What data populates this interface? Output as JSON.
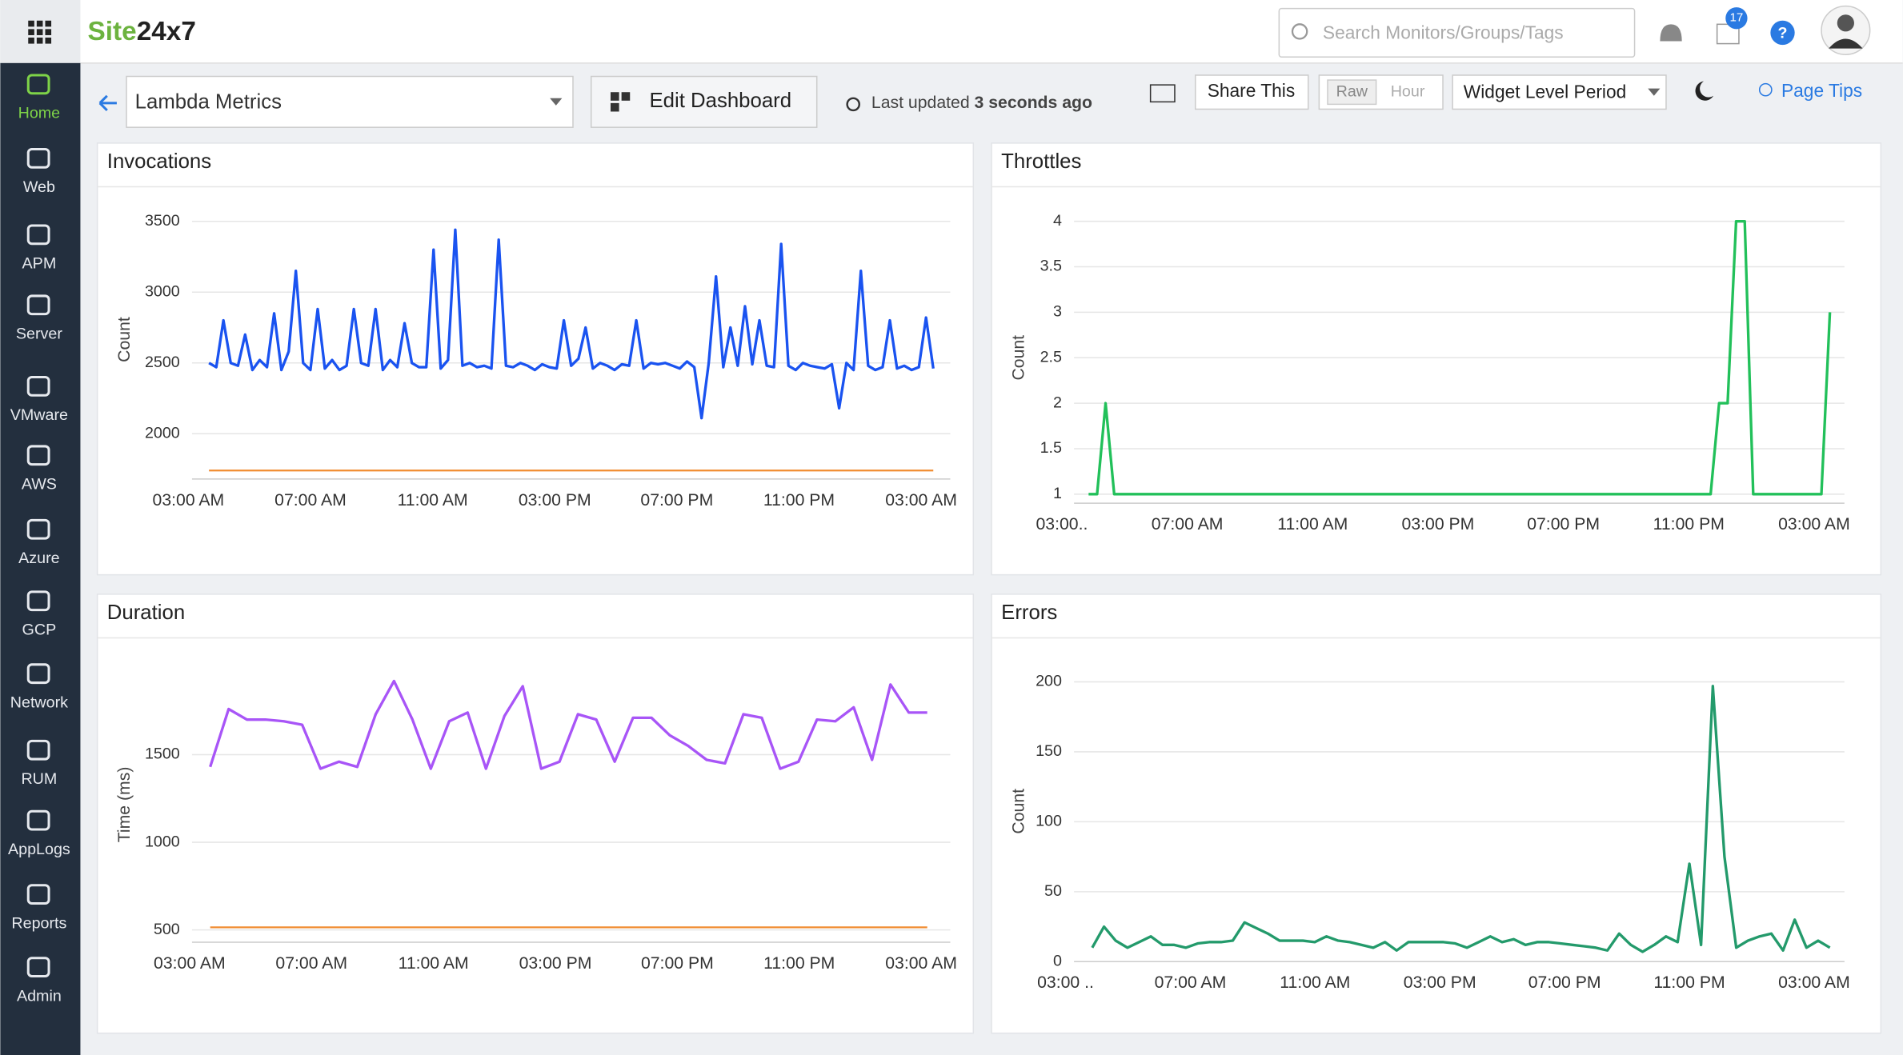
{
  "header": {
    "logo": {
      "part1": "Site",
      "part2": "24x7"
    },
    "search": "Search Monitors/Groups/Tags",
    "badge": "17"
  },
  "sidebar": [
    "Home",
    "Web",
    "APM",
    "Server",
    "VMware",
    "AWS",
    "Azure",
    "GCP",
    "Network",
    "RUM",
    "AppLogs",
    "Reports",
    "Admin"
  ],
  "toolbar": {
    "dashboard": "Lambda Metrics",
    "edit": "Edit Dashboard",
    "updated": "Last updated",
    "updated_value": "3 seconds ago",
    "share": "Share This",
    "raw": "Raw",
    "hour": "Hour",
    "period": "Widget Level Period",
    "tips": "Page Tips"
  },
  "chart_data": [
    {
      "type": "line",
      "title": "Invocations",
      "ylabel": "Count",
      "ylim": [
        1680,
        3650
      ],
      "yticks": [
        2000,
        2500,
        3000,
        3500
      ],
      "grid": true,
      "xticks": [
        "03:00 AM",
        "07:00 AM",
        "11:00 AM",
        "03:00 PM",
        "07:00 PM",
        "11:00 PM",
        "03:00 AM"
      ],
      "series": [
        {
          "color": "#1a53f0",
          "values": [
            2500,
            2470,
            2800,
            2500,
            2480,
            2700,
            2450,
            2520,
            2470,
            2850,
            2450,
            2580,
            3150,
            2500,
            2450,
            2880,
            2460,
            2520,
            2450,
            2480,
            2880,
            2500,
            2480,
            2880,
            2450,
            2520,
            2470,
            2780,
            2500,
            2470,
            2470,
            3300,
            2460,
            2520,
            3440,
            2480,
            2500,
            2470,
            2480,
            2460,
            3370,
            2480,
            2470,
            2500,
            2480,
            2450,
            2490,
            2470,
            2460,
            2800,
            2480,
            2530,
            2750,
            2460,
            2500,
            2480,
            2450,
            2490,
            2480,
            2800,
            2460,
            2500,
            2490,
            2500,
            2480,
            2460,
            2510,
            2470,
            2110,
            2500,
            3110,
            2470,
            2750,
            2480,
            2900,
            2490,
            2800,
            2480,
            2470,
            3340,
            2480,
            2450,
            2500,
            2480,
            2470,
            2460,
            2490,
            2180,
            2500,
            2450,
            3150,
            2480,
            2450,
            2470,
            2800,
            2460,
            2480,
            2450,
            2470,
            2820,
            2460
          ]
        },
        {
          "color": "#f08c30",
          "values": [
            1740,
            1740
          ]
        }
      ]
    },
    {
      "type": "line",
      "title": "Throttles",
      "ylabel": "Count",
      "ylim": [
        0.9,
        4.1
      ],
      "yticks": [
        1,
        1.5,
        2,
        2.5,
        3,
        3.5,
        4
      ],
      "grid": true,
      "xticks": [
        "03:00..",
        "07:00 AM",
        "11:00 AM",
        "03:00 PM",
        "07:00 PM",
        "11:00 PM",
        "03:00 AM"
      ],
      "series": [
        {
          "color": "#22c05a",
          "values": [
            1,
            1,
            2,
            1,
            1,
            1,
            1,
            1,
            1,
            1,
            1,
            1,
            1,
            1,
            1,
            1,
            1,
            1,
            1,
            1,
            1,
            1,
            1,
            1,
            1,
            1,
            1,
            1,
            1,
            1,
            1,
            1,
            1,
            1,
            1,
            1,
            1,
            1,
            1,
            1,
            1,
            1,
            1,
            1,
            1,
            1,
            1,
            1,
            1,
            1,
            1,
            1,
            1,
            1,
            1,
            1,
            1,
            1,
            1,
            1,
            1,
            1,
            1,
            1,
            1,
            1,
            1,
            1,
            1,
            1,
            1,
            1,
            1,
            1,
            2,
            2,
            4,
            4,
            1,
            1,
            1,
            1,
            1,
            1,
            1,
            1,
            1,
            3
          ]
        }
      ]
    },
    {
      "type": "line",
      "title": "Duration",
      "ylabel": "Time (ms)",
      "ylim": [
        430,
        2000
      ],
      "yticks": [
        500,
        1000,
        1500
      ],
      "grid": true,
      "xticks": [
        "03:00 AM",
        "07:00 AM",
        "11:00 AM",
        "03:00 PM",
        "07:00 PM",
        "11:00 PM",
        "03:00 AM"
      ],
      "series": [
        {
          "color": "#a855f7",
          "values": [
            1430,
            1760,
            1700,
            1700,
            1690,
            1670,
            1420,
            1460,
            1430,
            1730,
            1920,
            1700,
            1420,
            1690,
            1740,
            1420,
            1720,
            1890,
            1420,
            1460,
            1730,
            1700,
            1460,
            1710,
            1710,
            1610,
            1550,
            1470,
            1450,
            1730,
            1710,
            1420,
            1460,
            1700,
            1690,
            1770,
            1470,
            1900,
            1740,
            1740
          ]
        },
        {
          "color": "#f08c30",
          "values": [
            515,
            515
          ]
        }
      ]
    },
    {
      "type": "line",
      "title": "Errors",
      "ylabel": "Count",
      "ylim": [
        0,
        215
      ],
      "yticks": [
        0,
        50,
        100,
        150,
        200
      ],
      "grid": true,
      "xticks": [
        "03:00 ..",
        "07:00 AM",
        "11:00 AM",
        "03:00 PM",
        "07:00 PM",
        "11:00 PM",
        "03:00 AM"
      ],
      "series": [
        {
          "color": "#239a6b",
          "values": [
            10,
            25,
            15,
            10,
            14,
            18,
            12,
            12,
            10,
            13,
            14,
            14,
            15,
            28,
            24,
            20,
            15,
            15,
            15,
            14,
            18,
            15,
            14,
            12,
            10,
            14,
            8,
            14,
            14,
            14,
            14,
            13,
            10,
            14,
            18,
            14,
            16,
            12,
            14,
            14,
            13,
            12,
            11,
            10,
            8,
            20,
            12,
            7,
            12,
            18,
            14,
            70,
            12,
            197,
            75,
            10,
            15,
            18,
            20,
            8,
            30,
            10,
            15,
            10
          ]
        }
      ]
    }
  ]
}
